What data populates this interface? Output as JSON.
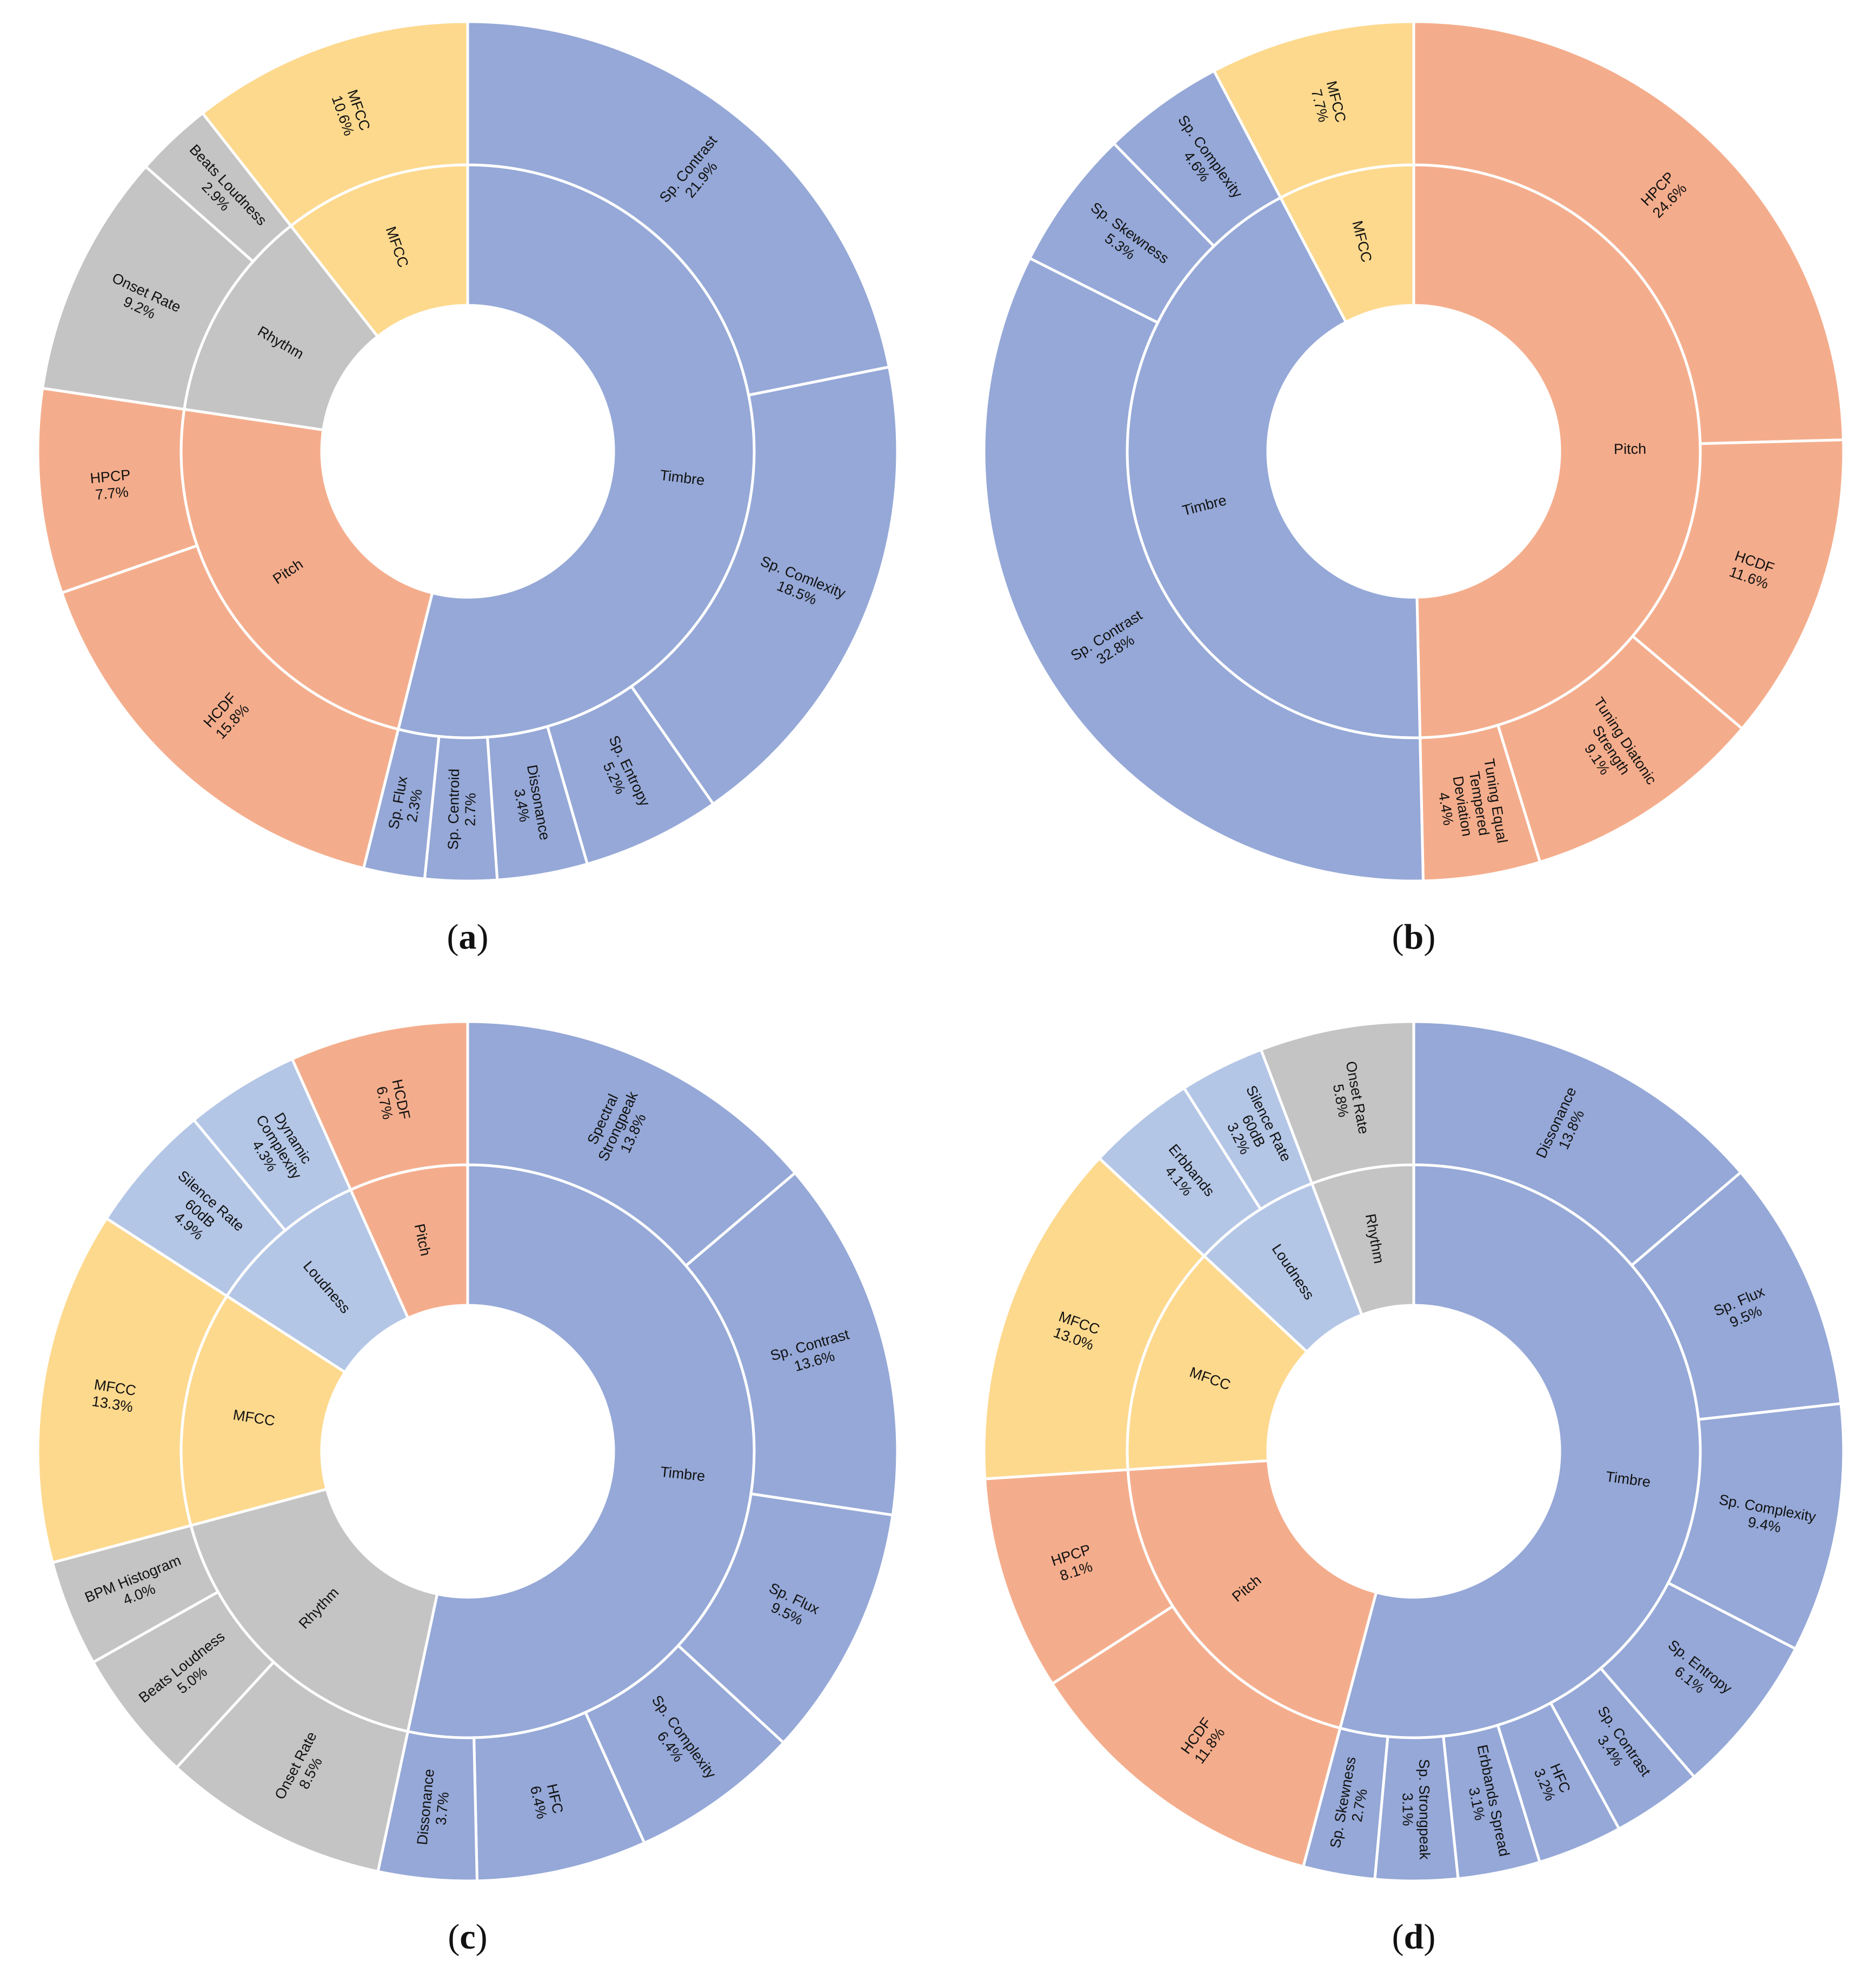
{
  "colors": {
    "Timbre": "#95A8D7",
    "MFCC": "#FDD98E",
    "Rhythm": "#C4C4C4",
    "Pitch": "#F4AD8C",
    "Loudness": "#B4C6E6",
    "edge": "#ffffff"
  },
  "chart_data": [
    {
      "type": "sunburst",
      "panel": "(a)",
      "caption_letter": "a",
      "groups": [
        {
          "name": "Timbre",
          "color_key": "Timbre",
          "children": [
            {
              "label": "Sp. Contrast",
              "value": 21.9,
              "display": "21.9%"
            },
            {
              "label": "Sp. Comlexity",
              "value": 18.5,
              "display": "18.5%"
            },
            {
              "label": "Sp. Entropy",
              "value": 5.2,
              "display": "5.2%"
            },
            {
              "label": "Dissonance",
              "value": 3.4,
              "display": "3.4%"
            },
            {
              "label": "Sp. Centroid",
              "value": 2.7,
              "display": "2.7%"
            },
            {
              "label": "Sp. Flux",
              "value": 2.3,
              "display": "2.3%"
            }
          ]
        },
        {
          "name": "Pitch",
          "color_key": "Pitch",
          "children": [
            {
              "label": "HCDF",
              "value": 15.8,
              "display": "15.8%"
            },
            {
              "label": "HPCP",
              "value": 7.7,
              "display": "7.7%"
            }
          ]
        },
        {
          "name": "Rhythm",
          "color_key": "Rhythm",
          "children": [
            {
              "label": "Onset Rate",
              "value": 9.2,
              "display": "9.2%"
            },
            {
              "label": "Beats Loudness",
              "value": 2.9,
              "display": "2.9%"
            }
          ]
        },
        {
          "name": "MFCC",
          "color_key": "MFCC",
          "children": [
            {
              "label": "MFCC",
              "value": 10.6,
              "display": "10.6%"
            }
          ]
        }
      ]
    },
    {
      "type": "sunburst",
      "panel": "(b)",
      "caption_letter": "b",
      "groups": [
        {
          "name": "Pitch",
          "color_key": "Pitch",
          "children": [
            {
              "label": "HPCP",
              "value": 24.6,
              "display": "24.6%"
            },
            {
              "label": "HCDF",
              "value": 11.6,
              "display": "11.6%"
            },
            {
              "label": "Tuning Diatonic Strength",
              "value": 9.1,
              "display": "9.1%"
            },
            {
              "label": "Tuning Equal Tempered Deviation",
              "value": 4.4,
              "display": "4.4%"
            }
          ]
        },
        {
          "name": "Timbre",
          "color_key": "Timbre",
          "children": [
            {
              "label": "Sp. Contrast",
              "value": 32.8,
              "display": "32.8%"
            },
            {
              "label": "Sp. Skewness",
              "value": 5.3,
              "display": "5.3%"
            },
            {
              "label": "Sp. Complexity",
              "value": 4.6,
              "display": "4.6%"
            }
          ]
        },
        {
          "name": "MFCC",
          "color_key": "MFCC",
          "children": [
            {
              "label": "MFCC",
              "value": 7.7,
              "display": "7.7%"
            }
          ]
        }
      ]
    },
    {
      "type": "sunburst",
      "panel": "(c)",
      "caption_letter": "c",
      "groups": [
        {
          "name": "Timbre",
          "color_key": "Timbre",
          "children": [
            {
              "label": "Spectral Strongpeak",
              "value": 13.8,
              "display": "13.8%"
            },
            {
              "label": "Sp. Contrast",
              "value": 13.6,
              "display": "13.6%"
            },
            {
              "label": "Sp. Flux",
              "value": 9.5,
              "display": "9.5%"
            },
            {
              "label": "Sp. Complexity",
              "value": 6.4,
              "display": "6.4%"
            },
            {
              "label": "HFC",
              "value": 6.4,
              "display": "6.4%"
            },
            {
              "label": "Dissonance",
              "value": 3.7,
              "display": "3.7%"
            }
          ]
        },
        {
          "name": "Rhythm",
          "color_key": "Rhythm",
          "children": [
            {
              "label": "Onset Rate",
              "value": 8.5,
              "display": "8.5%"
            },
            {
              "label": "Beats Loudness",
              "value": 5.0,
              "display": "5.0%"
            },
            {
              "label": "BPM Histogram",
              "value": 4.0,
              "display": "4.0%"
            }
          ]
        },
        {
          "name": "MFCC",
          "color_key": "MFCC",
          "children": [
            {
              "label": "MFCC",
              "value": 13.3,
              "display": "13.3%"
            }
          ]
        },
        {
          "name": "Loudness",
          "color_key": "Loudness",
          "children": [
            {
              "label": "Silence Rate 60dB",
              "value": 4.9,
              "display": "4.9%"
            },
            {
              "label": "Dynamic Complexity",
              "value": 4.3,
              "display": "4.3%"
            }
          ]
        },
        {
          "name": "Pitch",
          "color_key": "Pitch",
          "children": [
            {
              "label": "HCDF",
              "value": 6.7,
              "display": "6.7%"
            }
          ]
        }
      ]
    },
    {
      "type": "sunburst",
      "panel": "(d)",
      "caption_letter": "d",
      "groups": [
        {
          "name": "Timbre",
          "color_key": "Timbre",
          "children": [
            {
              "label": "Dissonance",
              "value": 13.8,
              "display": "13.8%"
            },
            {
              "label": "Sp. Flux",
              "value": 9.5,
              "display": "9.5%"
            },
            {
              "label": "Sp. Complexity",
              "value": 9.4,
              "display": "9.4%"
            },
            {
              "label": "Sp. Entropy",
              "value": 6.1,
              "display": "6.1%"
            },
            {
              "label": "Sp. Contrast",
              "value": 3.4,
              "display": "3.4%"
            },
            {
              "label": "HFC",
              "value": 3.2,
              "display": "3.2%"
            },
            {
              "label": "Erbbands Spread",
              "value": 3.1,
              "display": "3.1%"
            },
            {
              "label": "Sp. Strongpeak",
              "value": 3.1,
              "display": "3.1%"
            },
            {
              "label": "Sp. Skewness",
              "value": 2.7,
              "display": "2.7%"
            }
          ]
        },
        {
          "name": "Pitch",
          "color_key": "Pitch",
          "children": [
            {
              "label": "HCDF",
              "value": 11.8,
              "display": "11.8%"
            },
            {
              "label": "HPCP",
              "value": 8.1,
              "display": "8.1%"
            }
          ]
        },
        {
          "name": "MFCC",
          "color_key": "MFCC",
          "children": [
            {
              "label": "MFCC",
              "value": 13.0,
              "display": "13.0%"
            }
          ]
        },
        {
          "name": "Loudness",
          "color_key": "Loudness",
          "children": [
            {
              "label": "Erbbands",
              "value": 4.1,
              "display": "4.1%"
            },
            {
              "label": "Silence Rate 60dB",
              "value": 3.2,
              "display": "3.2%"
            }
          ]
        },
        {
          "name": "Rhythm",
          "color_key": "Rhythm",
          "children": [
            {
              "label": "Onset Rate",
              "value": 5.8,
              "display": "5.8%"
            }
          ]
        }
      ]
    }
  ]
}
